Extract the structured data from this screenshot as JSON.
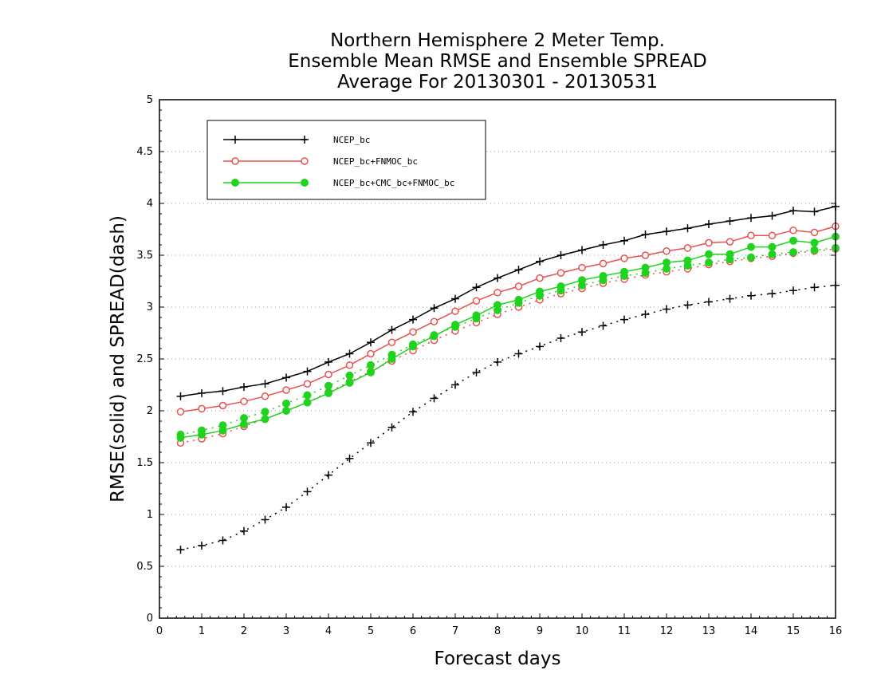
{
  "chart_data": {
    "type": "line",
    "title": [
      "Northern Hemisphere 2 Meter Temp.",
      "Ensemble Mean RMSE and Ensemble SPREAD",
      "Average For 20130301 - 20130531"
    ],
    "xlabel": "Forecast days",
    "ylabel": "RMSE(solid) and SPREAD(dash)",
    "xlim": [
      0,
      16
    ],
    "ylim": [
      0,
      5
    ],
    "xticks": [
      "0",
      "1",
      "2",
      "3",
      "4",
      "5",
      "6",
      "7",
      "8",
      "9",
      "10",
      "11",
      "12",
      "13",
      "14",
      "15",
      "16"
    ],
    "yticks": [
      "0",
      "0.5",
      "1",
      "1.5",
      "2",
      "2.5",
      "3",
      "3.5",
      "4",
      "4.5",
      "5"
    ],
    "grid": "dotted-horizontal",
    "legend_position": "top-left",
    "x": [
      0.5,
      1,
      1.5,
      2,
      2.5,
      3,
      3.5,
      4,
      4.5,
      5,
      5.5,
      6,
      6.5,
      7,
      7.5,
      8,
      8.5,
      9,
      9.5,
      10,
      10.5,
      11,
      11.5,
      12,
      12.5,
      13,
      13.5,
      14,
      14.5,
      15,
      15.5,
      16
    ],
    "series": [
      {
        "name": "NCEP_bc",
        "color": "#000000",
        "marker": "plus",
        "rmse": [
          2.14,
          2.17,
          2.19,
          2.23,
          2.26,
          2.32,
          2.38,
          2.47,
          2.55,
          2.66,
          2.78,
          2.88,
          2.99,
          3.08,
          3.19,
          3.28,
          3.36,
          3.44,
          3.5,
          3.55,
          3.6,
          3.64,
          3.7,
          3.73,
          3.76,
          3.8,
          3.83,
          3.86,
          3.88,
          3.93,
          3.92,
          3.97
        ],
        "spread": [
          0.66,
          0.7,
          0.75,
          0.84,
          0.95,
          1.07,
          1.22,
          1.38,
          1.54,
          1.69,
          1.84,
          1.99,
          2.12,
          2.25,
          2.37,
          2.47,
          2.55,
          2.62,
          2.7,
          2.76,
          2.82,
          2.88,
          2.93,
          2.98,
          3.02,
          3.05,
          3.08,
          3.11,
          3.13,
          3.16,
          3.19,
          3.21
        ]
      },
      {
        "name": "NCEP_bc+FNMOC_bc",
        "color": "#e8514f",
        "marker": "open-circle",
        "rmse": [
          1.99,
          2.02,
          2.05,
          2.09,
          2.14,
          2.2,
          2.26,
          2.35,
          2.44,
          2.55,
          2.66,
          2.76,
          2.86,
          2.96,
          3.06,
          3.14,
          3.2,
          3.28,
          3.33,
          3.38,
          3.42,
          3.47,
          3.5,
          3.54,
          3.57,
          3.62,
          3.63,
          3.69,
          3.69,
          3.74,
          3.72,
          3.78
        ],
        "spread": [
          1.69,
          1.73,
          1.78,
          1.85,
          1.92,
          2.0,
          2.08,
          2.18,
          2.28,
          2.38,
          2.48,
          2.58,
          2.68,
          2.77,
          2.85,
          2.93,
          3.0,
          3.07,
          3.13,
          3.18,
          3.23,
          3.27,
          3.31,
          3.34,
          3.37,
          3.41,
          3.44,
          3.47,
          3.49,
          3.52,
          3.54,
          3.56
        ]
      },
      {
        "name": "NCEP_bc+CMC_bc+FNMOC_bc",
        "color": "#1fd31f",
        "marker": "filled-circle",
        "rmse": [
          1.74,
          1.77,
          1.81,
          1.87,
          1.92,
          2.0,
          2.08,
          2.17,
          2.27,
          2.37,
          2.5,
          2.62,
          2.72,
          2.83,
          2.92,
          3.02,
          3.07,
          3.15,
          3.2,
          3.26,
          3.3,
          3.34,
          3.38,
          3.43,
          3.45,
          3.51,
          3.51,
          3.58,
          3.58,
          3.64,
          3.62,
          3.68
        ],
        "spread": [
          1.77,
          1.81,
          1.86,
          1.93,
          1.99,
          2.07,
          2.15,
          2.24,
          2.34,
          2.44,
          2.54,
          2.64,
          2.73,
          2.81,
          2.89,
          2.97,
          3.04,
          3.11,
          3.16,
          3.21,
          3.26,
          3.3,
          3.33,
          3.37,
          3.4,
          3.43,
          3.46,
          3.48,
          3.51,
          3.53,
          3.55,
          3.57
        ]
      }
    ]
  }
}
